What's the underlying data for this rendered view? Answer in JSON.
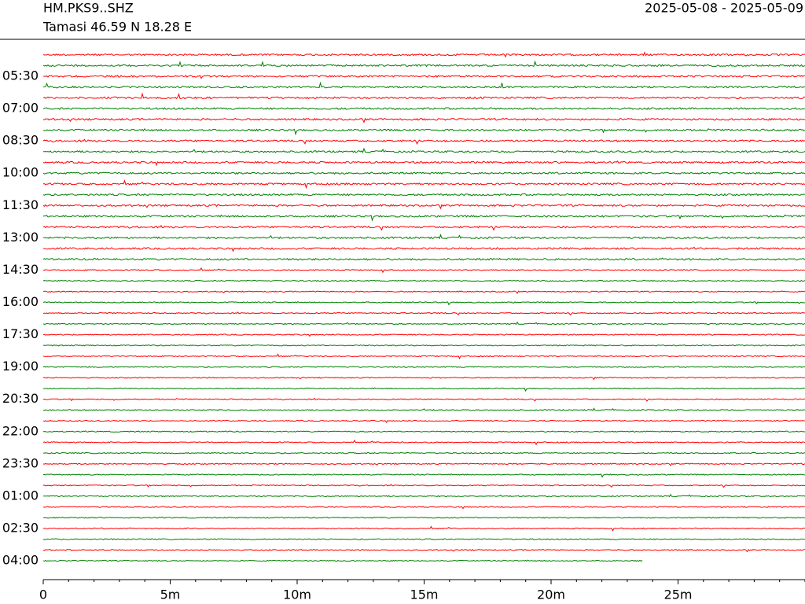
{
  "chart_data": {
    "type": "helicorder",
    "station": "HM.PKS9..SHZ",
    "location": "Tamasi  46.59 N 18.28 E",
    "date_range": "2025-05-08 - 2025-05-09",
    "row_labels": [
      "05:30",
      "07:00",
      "08:30",
      "10:00",
      "11:30",
      "13:00",
      "14:30",
      "16:00",
      "17:30",
      "19:00",
      "20:30",
      "22:00",
      "23:30",
      "01:00",
      "02:30",
      "04:00"
    ],
    "colors": [
      "#ff0000",
      "#008000"
    ],
    "xlim": [
      0,
      30
    ],
    "xticks": [
      0,
      {
        "value": 5,
        "label": "5m"
      },
      {
        "value": 10,
        "label": "10m"
      },
      {
        "value": 15,
        "label": "15m"
      },
      {
        "value": 20,
        "label": "20m"
      },
      {
        "value": 25,
        "label": "25m"
      }
    ],
    "last_trace_end": 23.6
  }
}
